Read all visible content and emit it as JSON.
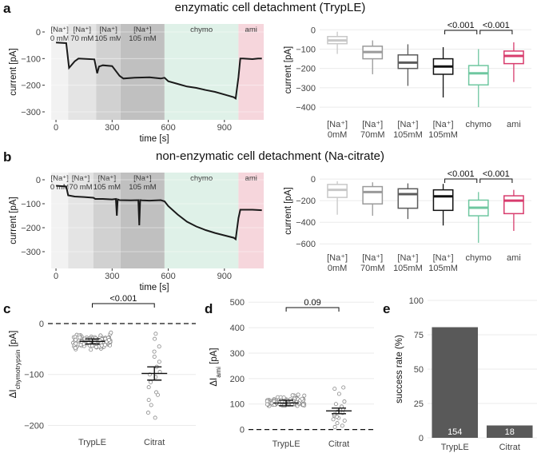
{
  "panels": {
    "a": "a",
    "b": "b",
    "c": "c",
    "d": "d",
    "e": "e"
  },
  "titles": {
    "a": "enzymatic cell detachment (TrypLE)",
    "b": "non-enzymatic cell detachment (Na-citrate)"
  },
  "colors": {
    "trace": "#1a1a1a",
    "chymo_bg": "#dff1e8",
    "ami_bg": "#f6d6dc",
    "na0": "#f2f2f2",
    "na70": "#e4e4e4",
    "na105": "#d1d1d1",
    "na105b": "#c0c0c0",
    "box0": "#c8c8c8",
    "box70": "#9a9a9a",
    "box105": "#5b5b5b",
    "box105b": "#111111",
    "boxchymo": "#6fc7a0",
    "boxami": "#d83c6d",
    "bar": "#595959"
  },
  "chart_data": [
    {
      "id": "a-trace",
      "type": "line",
      "segments": [
        {
          "label1": "[Na⁺]",
          "label2": "0 mM",
          "x0": -25,
          "x1": 65
        },
        {
          "label1": "[Na⁺]",
          "label2": "70 mM",
          "x0": 65,
          "x1": 215
        },
        {
          "label1": "[Na⁺]",
          "label2": "105 mM",
          "x0": 215,
          "x1": 345
        },
        {
          "label1": "[Na⁺]",
          "label2": "105 mM",
          "x0": 345,
          "x1": 580
        },
        {
          "label1": "chymo",
          "label2": "",
          "x0": 580,
          "x1": 975
        },
        {
          "label1": "ami",
          "label2": "",
          "x0": 975,
          "x1": 1110
        }
      ],
      "x": [
        0,
        55,
        70,
        100,
        120,
        205,
        220,
        230,
        250,
        300,
        340,
        360,
        420,
        500,
        560,
        580,
        600,
        650,
        700,
        750,
        800,
        850,
        900,
        950,
        960,
        975,
        985,
        1000,
        1050,
        1080,
        1100
      ],
      "y": [
        -40,
        -42,
        -135,
        -110,
        -100,
        -103,
        -155,
        -130,
        -125,
        -128,
        -165,
        -175,
        -172,
        -170,
        -175,
        -172,
        -185,
        -195,
        -205,
        -210,
        -218,
        -225,
        -235,
        -245,
        -250,
        -170,
        -100,
        -100,
        -102,
        -100,
        -100
      ],
      "xlabel": "time [s]",
      "ylabel": "current [pA]",
      "xticks": [
        0,
        300,
        600,
        900
      ],
      "xtick_labels": [
        "0",
        "300",
        "600",
        "900"
      ],
      "yticks": [
        0,
        -100,
        -200,
        -300
      ],
      "ytick_labels": [
        "0",
        "−100",
        "−200",
        "−300"
      ],
      "xlim": [
        -60,
        1110
      ],
      "ylim": [
        -330,
        30
      ]
    },
    {
      "id": "a-box",
      "type": "box",
      "categories": [
        {
          "l1": "[Na⁺]",
          "l2": "0mM"
        },
        {
          "l1": "[Na⁺]",
          "l2": "70mM"
        },
        {
          "l1": "[Na⁺]",
          "l2": "105mM"
        },
        {
          "l1": "[Na⁺]",
          "l2": "105mM"
        },
        {
          "l1": "chymo",
          "l2": ""
        },
        {
          "l1": "ami",
          "l2": ""
        }
      ],
      "boxes": [
        {
          "min": -125,
          "q1": -72,
          "med": -55,
          "q3": -35,
          "max": -10
        },
        {
          "min": -230,
          "q1": -150,
          "med": -115,
          "q3": -85,
          "max": -55
        },
        {
          "min": -290,
          "q1": -200,
          "med": -170,
          "q3": -130,
          "max": -75
        },
        {
          "min": -350,
          "q1": -230,
          "med": -190,
          "q3": -150,
          "max": -90
        },
        {
          "min": -400,
          "q1": -285,
          "med": -225,
          "q3": -185,
          "max": -100
        },
        {
          "min": -270,
          "q1": -175,
          "med": -135,
          "q3": -110,
          "max": -65
        }
      ],
      "ylabel": "current [pA]",
      "yticks": [
        0,
        -100,
        -200,
        -300,
        -400
      ],
      "ytick_labels": [
        "0",
        "−100",
        "−200",
        "−300",
        "−400"
      ],
      "ylim": [
        -445,
        30
      ],
      "brackets": [
        {
          "from": 3,
          "to": 4,
          "label": "<0.001"
        },
        {
          "from": 4,
          "to": 5,
          "label": "<0.001"
        }
      ]
    },
    {
      "id": "b-trace",
      "type": "line",
      "segments": [
        {
          "label1": "[Na⁺]",
          "label2": "0 mM",
          "x0": -25,
          "x1": 65
        },
        {
          "label1": "[Na⁺]",
          "label2": "70 mM",
          "x0": 65,
          "x1": 200
        },
        {
          "label1": "[Na⁺]",
          "label2": "105 mM",
          "x0": 200,
          "x1": 345
        },
        {
          "label1": "[Na⁺]",
          "label2": "105 mM",
          "x0": 345,
          "x1": 580
        },
        {
          "label1": "chymo",
          "label2": "",
          "x0": 580,
          "x1": 975
        },
        {
          "label1": "ami",
          "label2": "",
          "x0": 975,
          "x1": 1110
        }
      ],
      "x": [
        0,
        55,
        65,
        100,
        150,
        200,
        210,
        250,
        300,
        320,
        325,
        330,
        340,
        400,
        440,
        445,
        450,
        460,
        500,
        560,
        580,
        600,
        650,
        700,
        750,
        800,
        850,
        900,
        950,
        960,
        975,
        985,
        1000,
        1050,
        1100
      ],
      "y": [
        -25,
        -28,
        -65,
        -70,
        -72,
        -75,
        -80,
        -80,
        -82,
        -80,
        -150,
        -82,
        -85,
        -86,
        -85,
        -190,
        -85,
        -86,
        -87,
        -85,
        -90,
        -110,
        -145,
        -175,
        -195,
        -210,
        -222,
        -232,
        -242,
        -248,
        -160,
        -125,
        -125,
        -125,
        -127
      ],
      "xlabel": "time [s]",
      "ylabel": "current [pA]",
      "xticks": [
        0,
        300,
        600,
        900
      ],
      "xtick_labels": [
        "0",
        "300",
        "600",
        "900"
      ],
      "yticks": [
        0,
        -100,
        -200,
        -300
      ],
      "ytick_labels": [
        "0",
        "−100",
        "−200",
        "−300"
      ],
      "xlim": [
        -60,
        1110
      ],
      "ylim": [
        -370,
        30
      ]
    },
    {
      "id": "b-box",
      "type": "box",
      "categories": [
        {
          "l1": "[Na⁺]",
          "l2": "0mM"
        },
        {
          "l1": "[Na⁺]",
          "l2": "70mM"
        },
        {
          "l1": "[Na⁺]",
          "l2": "105mM"
        },
        {
          "l1": "[Na⁺]",
          "l2": "105mM"
        },
        {
          "l1": "chymo",
          "l2": ""
        },
        {
          "l1": "ami",
          "l2": ""
        }
      ],
      "boxes": [
        {
          "min": -330,
          "q1": -170,
          "med": -100,
          "q3": -50,
          "max": -20
        },
        {
          "min": -340,
          "q1": -230,
          "med": -120,
          "q3": -70,
          "max": -30
        },
        {
          "min": -370,
          "q1": -270,
          "med": -140,
          "q3": -90,
          "max": -40
        },
        {
          "min": -430,
          "q1": -290,
          "med": -160,
          "q3": -100,
          "max": -45
        },
        {
          "min": -590,
          "q1": -340,
          "med": -265,
          "q3": -195,
          "max": -120
        },
        {
          "min": -480,
          "q1": -320,
          "med": -200,
          "q3": -155,
          "max": -100
        }
      ],
      "ylabel": "current [pA]",
      "yticks": [
        0,
        -200,
        -400,
        -600
      ],
      "ytick_labels": [
        "0",
        "−200",
        "−400",
        "−600"
      ],
      "ylim": [
        -650,
        60
      ],
      "brackets": [
        {
          "from": 3,
          "to": 4,
          "label": "<0.001"
        },
        {
          "from": 4,
          "to": 5,
          "label": "<0.001"
        }
      ]
    },
    {
      "id": "c",
      "type": "scatter",
      "categories": [
        "TrypLE",
        "Citrat"
      ],
      "groups": [
        {
          "mean": -35,
          "sem": 5,
          "n": 150
        },
        {
          "mean": -98,
          "sem": 13,
          "n": 18,
          "points": [
            -20,
            -30,
            -45,
            -55,
            -65,
            -75,
            -85,
            -95,
            -100,
            -105,
            -115,
            -125,
            -135,
            -140,
            -150,
            -160,
            -175,
            -185
          ]
        }
      ],
      "ylabel": "ΔI",
      "ylabel_sub": "chymotrypsin",
      "ylabel_unit": " [pA]",
      "yticks": [
        0,
        -100,
        -200
      ],
      "ytick_labels": [
        "0",
        "−100",
        "−200"
      ],
      "ylim": [
        -215,
        55
      ],
      "bracket": {
        "label": "<0.001"
      }
    },
    {
      "id": "d",
      "type": "scatter",
      "categories": [
        "TrypLE",
        "Citrat"
      ],
      "groups": [
        {
          "mean": 104,
          "sem": 11,
          "n": 150
        },
        {
          "mean": 73,
          "sem": 11,
          "n": 18,
          "points": [
            10,
            15,
            25,
            35,
            40,
            45,
            50,
            55,
            60,
            65,
            70,
            80,
            90,
            100,
            110,
            140,
            160,
            165
          ]
        }
      ],
      "ylabel": "ΔI",
      "ylabel_sub": "ami",
      "ylabel_unit": " [pA]",
      "yticks": [
        0,
        100,
        200,
        300,
        400,
        500
      ],
      "ytick_labels": [
        "0",
        "100",
        "200",
        "300",
        "400",
        "500"
      ],
      "ylim": [
        -20,
        510
      ],
      "bracket": {
        "label": "0.09"
      }
    },
    {
      "id": "e",
      "type": "bar",
      "categories": [
        "TrypLE",
        "Citrat"
      ],
      "values": [
        80.5,
        9
      ],
      "labels": [
        "154",
        "18"
      ],
      "ylabel": "success rate (%)",
      "yticks": [
        0,
        25,
        50,
        75,
        100
      ],
      "ytick_labels": [
        "0",
        "25",
        "50",
        "75",
        "100"
      ],
      "ylim": [
        0,
        100
      ]
    }
  ]
}
